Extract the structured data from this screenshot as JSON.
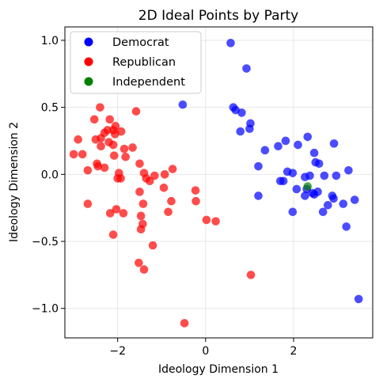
{
  "chart_data": {
    "type": "scatter",
    "title": "2D Ideal Points by Party",
    "xlabel": "Ideology Dimension 1",
    "ylabel": "Ideology Dimension 2",
    "xlim": [
      -3.2,
      3.8
    ],
    "ylim": [
      -1.22,
      1.1
    ],
    "x_ticks": [
      -2,
      0,
      2
    ],
    "x_tick_labels": [
      "−2",
      "0",
      "2"
    ],
    "y_ticks": [
      -1.0,
      -0.5,
      0.0,
      0.5,
      1.0
    ],
    "y_tick_labels": [
      "−1.0",
      "−0.5",
      "0.0",
      "0.5",
      "1.0"
    ],
    "grid": true,
    "legend_position": "top-left",
    "series": [
      {
        "name": "Democrat",
        "color": "#0000ff",
        "points": [
          [
            0.57,
            0.98
          ],
          [
            0.93,
            0.79
          ],
          [
            -0.52,
            0.52
          ],
          [
            0.63,
            0.5
          ],
          [
            0.68,
            0.48
          ],
          [
            0.82,
            0.46
          ],
          [
            1.02,
            0.38
          ],
          [
            1.0,
            0.34
          ],
          [
            0.79,
            0.32
          ],
          [
            1.35,
            0.18
          ],
          [
            1.65,
            0.21
          ],
          [
            1.82,
            0.25
          ],
          [
            2.1,
            0.22
          ],
          [
            2.32,
            0.28
          ],
          [
            2.92,
            0.23
          ],
          [
            2.47,
            0.16
          ],
          [
            2.5,
            0.09
          ],
          [
            2.58,
            0.08
          ],
          [
            1.2,
            0.06
          ],
          [
            1.86,
            0.02
          ],
          [
            1.98,
            0.01
          ],
          [
            2.26,
            -0.02
          ],
          [
            2.7,
            -0.01
          ],
          [
            2.97,
            -0.01
          ],
          [
            3.25,
            0.03
          ],
          [
            2.37,
            -0.01
          ],
          [
            1.7,
            -0.05
          ],
          [
            1.77,
            -0.05
          ],
          [
            2.07,
            -0.11
          ],
          [
            2.3,
            -0.11
          ],
          [
            2.43,
            -0.14
          ],
          [
            2.55,
            -0.13
          ],
          [
            2.47,
            -0.15
          ],
          [
            2.26,
            -0.16
          ],
          [
            2.88,
            -0.16
          ],
          [
            2.91,
            -0.18
          ],
          [
            1.2,
            -0.16
          ],
          [
            1.98,
            -0.28
          ],
          [
            2.67,
            -0.28
          ],
          [
            2.78,
            -0.23
          ],
          [
            3.13,
            -0.22
          ],
          [
            3.39,
            -0.19
          ],
          [
            3.2,
            -0.39
          ],
          [
            3.48,
            -0.93
          ]
        ]
      },
      {
        "name": "Republican",
        "color": "#ff0000",
        "points": [
          [
            -2.4,
            0.5
          ],
          [
            -2.18,
            0.41
          ],
          [
            -2.53,
            0.41
          ],
          [
            -1.58,
            0.47
          ],
          [
            -2.05,
            0.36
          ],
          [
            -2.1,
            0.33
          ],
          [
            -1.92,
            0.32
          ],
          [
            -2.3,
            0.31
          ],
          [
            -2.23,
            0.33
          ],
          [
            -2.06,
            0.3
          ],
          [
            -2.38,
            0.27
          ],
          [
            -2.5,
            0.26
          ],
          [
            -2.2,
            0.24
          ],
          [
            -2.9,
            0.26
          ],
          [
            -1.66,
            0.2
          ],
          [
            -1.85,
            0.19
          ],
          [
            -2.1,
            0.22
          ],
          [
            -2.38,
            0.21
          ],
          [
            -3.0,
            0.15
          ],
          [
            -2.8,
            0.15
          ],
          [
            -2.08,
            0.14
          ],
          [
            -1.82,
            0.13
          ],
          [
            -1.5,
            0.08
          ],
          [
            -2.47,
            0.08
          ],
          [
            -2.45,
            0.06
          ],
          [
            -2.68,
            0.03
          ],
          [
            -2.3,
            0.05
          ],
          [
            -0.75,
            0.04
          ],
          [
            -0.93,
            0.0
          ],
          [
            -1.97,
            0.01
          ],
          [
            -1.4,
            0.01
          ],
          [
            -1.16,
            -0.01
          ],
          [
            -2.0,
            -0.03
          ],
          [
            -1.93,
            -0.03
          ],
          [
            -1.35,
            -0.03
          ],
          [
            -1.27,
            -0.05
          ],
          [
            -0.95,
            -0.1
          ],
          [
            -1.5,
            -0.13
          ],
          [
            -2.68,
            -0.22
          ],
          [
            -1.42,
            -0.22
          ],
          [
            -0.78,
            -0.2
          ],
          [
            -2.03,
            -0.26
          ],
          [
            -2.17,
            -0.29
          ],
          [
            -1.87,
            -0.29
          ],
          [
            -0.85,
            -0.28
          ],
          [
            -1.47,
            -0.31
          ],
          [
            -0.23,
            -0.12
          ],
          [
            -0.22,
            -0.2
          ],
          [
            0.02,
            -0.34
          ],
          [
            0.23,
            -0.35
          ],
          [
            -1.43,
            -0.37
          ],
          [
            -1.47,
            -0.41
          ],
          [
            -2.1,
            -0.45
          ],
          [
            -1.2,
            -0.53
          ],
          [
            -1.52,
            -0.66
          ],
          [
            -1.4,
            -0.71
          ],
          [
            1.03,
            -0.75
          ],
          [
            -0.48,
            -1.11
          ]
        ]
      },
      {
        "name": "Independent",
        "color": "#008000",
        "points": [
          [
            2.32,
            -0.09
          ]
        ]
      }
    ]
  }
}
